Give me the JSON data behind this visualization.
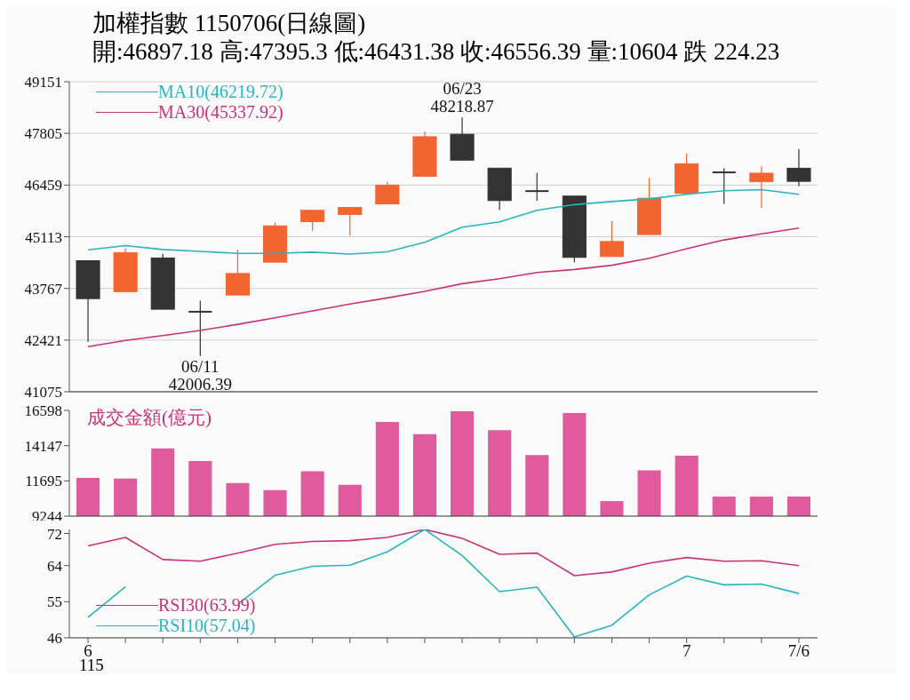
{
  "chart_data": [
    {
      "type": "candlestick",
      "title": "加權指數 1150706(日線圖)",
      "subtitle": "開:46897.18 高:47395.3 低:46431.38 收:46556.39 量:10604 跌 224.23",
      "categories": [
        null,
        null,
        null,
        null,
        null,
        null,
        null,
        null,
        null,
        null,
        null,
        null,
        null,
        null,
        null,
        null,
        null,
        null,
        null,
        null
      ],
      "ohlc": [
        [
          44488,
          44488,
          42375,
          43501
        ],
        [
          43682,
          44815,
          43682,
          44699
        ],
        [
          44560,
          44669,
          43225,
          43225
        ],
        [
          43159,
          43449,
          42006.39,
          43159
        ],
        [
          43595,
          44778,
          43595,
          44155
        ],
        [
          44451,
          45483,
          44451,
          45396
        ],
        [
          45505,
          45801,
          45265,
          45801
        ],
        [
          45692,
          45875,
          45135,
          45875
        ],
        [
          45969,
          46550,
          45969,
          46459
        ],
        [
          46688,
          47857,
          46688,
          47718
        ],
        [
          47783,
          48218.87,
          47108,
          47108
        ],
        [
          46899,
          46899,
          45810,
          46056
        ],
        [
          46302,
          46775,
          46050,
          46302
        ],
        [
          46172,
          46172,
          44444,
          44575
        ],
        [
          44597,
          45518,
          44597,
          44989
        ],
        [
          45170,
          46644,
          45170,
          46115
        ],
        [
          46246,
          47282,
          46246,
          47014
        ],
        [
          46790,
          46899,
          45969,
          46790
        ],
        [
          46550,
          46949,
          45867,
          46768
        ],
        [
          46897.18,
          47395.3,
          46431.38,
          46556.39
        ]
      ],
      "colors": [
        "#333333",
        "#f26530",
        "#333333",
        "#333333",
        "#f26530",
        "#f26530",
        "#f26530",
        "#f26530",
        "#f26530",
        "#f26530",
        "#333333",
        "#333333",
        "#333333",
        "#333333",
        "#f26530",
        "#f26530",
        "#f26530",
        "#333333",
        "#f26530",
        "#333333"
      ],
      "series": [
        {
          "name": "MA10(46219.72)",
          "type": "line",
          "color": "#2ab3c0",
          "values": [
            44770,
            44880,
            44780,
            44730,
            44680,
            44680,
            44710,
            44660,
            44720,
            44970,
            45360,
            45500,
            45800,
            45950,
            46030,
            46100,
            46220,
            46310,
            46340,
            46219.72
          ]
        },
        {
          "name": "MA30(45337.92)",
          "type": "line",
          "color": "#c8327a",
          "values": [
            42250,
            42410,
            42540,
            42670,
            42830,
            43000,
            43180,
            43360,
            43520,
            43690,
            43890,
            44020,
            44180,
            44260,
            44370,
            44550,
            44800,
            45030,
            45190,
            45337.92
          ]
        }
      ],
      "ylim": [
        41075,
        49151
      ],
      "yticks": [
        41075,
        42421,
        43767,
        45113,
        46459,
        47805,
        49151
      ],
      "grid": "y",
      "legend": "top left",
      "tick_labels": "y",
      "annotations": [
        "06/11\n42006.39",
        "06/23\n48218.87"
      ]
    },
    {
      "type": "bar",
      "title": "成交金額(億元)",
      "categories": [
        null,
        null,
        null,
        null,
        null,
        null,
        null,
        null,
        null,
        null,
        null,
        null,
        null,
        null,
        null,
        null,
        null,
        null,
        null,
        null
      ],
      "values": [
        11900,
        11850,
        13950,
        13080,
        11550,
        11050,
        12370,
        11420,
        15800,
        14950,
        16540,
        15220,
        13500,
        16420,
        10290,
        12430,
        13440,
        10600,
        10600,
        10604
      ],
      "color": "#e05a9e",
      "ylim": [
        9244,
        16598
      ],
      "yticks": [
        9244,
        11695,
        14147,
        16598
      ],
      "tick_labels": "y"
    },
    {
      "type": "line",
      "categories": [
        "6",
        null,
        null,
        null,
        null,
        null,
        null,
        null,
        null,
        null,
        null,
        null,
        null,
        null,
        null,
        null,
        "7",
        null,
        null,
        "7/6"
      ],
      "series": [
        {
          "name": "RSI30(63.99)",
          "color": "#c8327a",
          "values": [
            68.9,
            71.0,
            65.5,
            65.1,
            67.1,
            69.3,
            70.0,
            70.2,
            71.0,
            73.0,
            70.8,
            66.8,
            67.1,
            61.5,
            62.4,
            64.6,
            66.0,
            65.1,
            65.2,
            63.99
          ]
        },
        {
          "name": "RSI10(57.04)",
          "color": "#2ab3c0",
          "values": [
            51.1,
            58.7,
            null,
            null,
            54.4,
            61.6,
            63.8,
            64.1,
            67.4,
            73.0,
            66.5,
            57.5,
            58.6,
            46.2,
            49.1,
            56.7,
            61.4,
            59.2,
            59.4,
            57.04
          ]
        }
      ],
      "ylim": [
        46,
        73
      ],
      "yticks": [
        46,
        55,
        64,
        72
      ],
      "legend": "bottom left",
      "annotations": [
        "115"
      ]
    }
  ]
}
